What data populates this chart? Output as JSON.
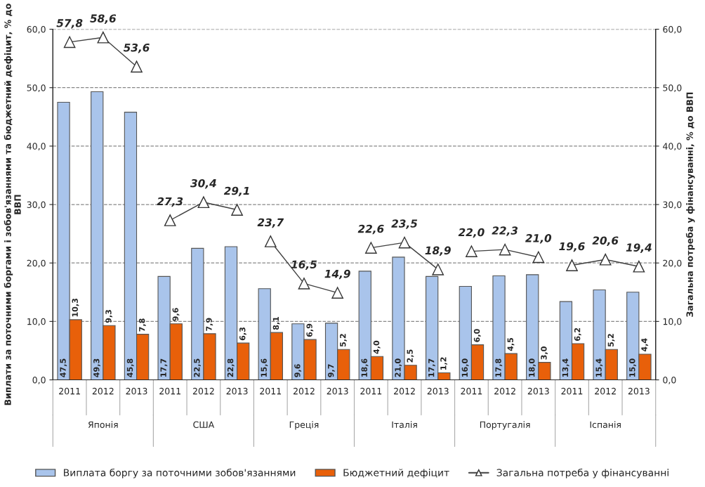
{
  "chart_data": {
    "type": "bar",
    "categories": [
      "2011",
      "2012",
      "2013",
      "2011",
      "2012",
      "2013",
      "2011",
      "2012",
      "2013",
      "2011",
      "2012",
      "2013",
      "2011",
      "2012",
      "2013",
      "2011",
      "2012",
      "2013"
    ],
    "annotations": [
      "Японія",
      "США",
      "Греція",
      "Італія",
      "Португалія",
      "Іспанія"
    ],
    "ylabel": "Виплати за поточними боргами і зобов'язаннями та бюджетний дефіцит, % до ВВП",
    "y2label": "Загальна потреба у фінансуванні, % до ВВП",
    "series": [
      {
        "name": "Виплата боргу за поточними зобов'язаннями",
        "color": "#a9c4eb",
        "values": [
          47.5,
          49.3,
          45.8,
          17.7,
          22.5,
          22.8,
          15.6,
          9.6,
          9.7,
          18.6,
          21.0,
          17.7,
          16.0,
          17.8,
          18.0,
          13.4,
          15.4,
          15.0
        ],
        "value_labels": [
          "47,5",
          "49,3",
          "45,8",
          "17,7",
          "22,5",
          "22,8",
          "15,6",
          "9,6",
          "9,7",
          "18,6",
          "21,0",
          "17,7",
          "16,0",
          "17,8",
          "18,0",
          "13,4",
          "15,4",
          "15,0"
        ]
      },
      {
        "name": "Бюджетний дефіцит",
        "color": "#e8600a",
        "values": [
          10.3,
          9.3,
          7.8,
          9.6,
          7.9,
          6.3,
          8.1,
          6.9,
          5.2,
          4.0,
          2.5,
          1.2,
          6.0,
          4.5,
          3.0,
          6.2,
          5.2,
          4.4
        ],
        "value_labels": [
          "10,3",
          "9,3",
          "7,8",
          "9,6",
          "7,9",
          "6,3",
          "8,1",
          "6,9",
          "5,2",
          "4,0",
          "2,5",
          "1,2",
          "6,0",
          "4,5",
          "3,0",
          "6,2",
          "5,2",
          "4,4"
        ]
      },
      {
        "name": "Загальна потреба у фінансуванні",
        "type": "line",
        "axis": "y2",
        "color": "#404040",
        "marker": "triangle",
        "values": [
          57.8,
          58.6,
          53.6,
          27.3,
          30.4,
          29.1,
          23.7,
          16.5,
          14.9,
          22.6,
          23.5,
          18.9,
          22.0,
          22.3,
          21.0,
          19.6,
          20.6,
          19.4
        ],
        "value_labels": [
          "57,8",
          "58,6",
          "53,6",
          "27,3",
          "30,4",
          "29,1",
          "23,7",
          "16,5",
          "14,9",
          "22,6",
          "23,5",
          "18,9",
          "22,0",
          "22,3",
          "21,0",
          "19,6",
          "20,6",
          "19,4"
        ]
      }
    ],
    "ylim": [
      0,
      60
    ],
    "yticks": [
      {
        "value": 0,
        "label": "0,0"
      },
      {
        "value": 10,
        "label": "10,0"
      },
      {
        "value": 20,
        "label": "20,0"
      },
      {
        "value": 30,
        "label": "30,0"
      },
      {
        "value": 40,
        "label": "40,0"
      },
      {
        "value": 50,
        "label": "50,0"
      },
      {
        "value": 60,
        "label": "60,0"
      }
    ],
    "y2lim": [
      0,
      60
    ],
    "y2ticks": [
      {
        "value": 0,
        "label": "0,0"
      },
      {
        "value": 10,
        "label": "10,0"
      },
      {
        "value": 20,
        "label": "20,0"
      },
      {
        "value": 30,
        "label": "30,0"
      },
      {
        "value": 40,
        "label": "40,0"
      },
      {
        "value": 50,
        "label": "50,0"
      },
      {
        "value": 60,
        "label": "60,0"
      }
    ],
    "grid": "y",
    "legend": "bottom"
  }
}
